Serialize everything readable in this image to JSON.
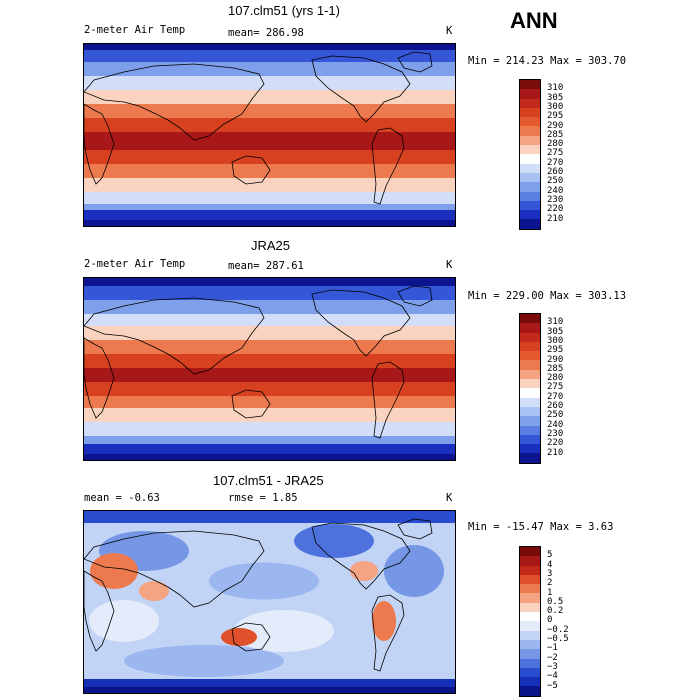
{
  "season": "ANN",
  "panels": [
    {
      "title": "107.clm51 (yrs 1-1)",
      "variable": "2-meter Air Temp",
      "mean": "mean= 286.98",
      "units": "K",
      "minmax": "Min = 214.23 Max = 303.70",
      "colorbar": {
        "labels": [
          "310",
          "305",
          "300",
          "295",
          "290",
          "285",
          "280",
          "275",
          "270",
          "260",
          "250",
          "240",
          "230",
          "220",
          "210"
        ],
        "colors": [
          "#7a0b0b",
          "#a81818",
          "#c42a1c",
          "#d8411f",
          "#e45a2e",
          "#ec7a4e",
          "#f4a383",
          "#f9d3bf",
          "#ffffff",
          "#d2def7",
          "#a7c1f2",
          "#7ea0ea",
          "#5a7fe2",
          "#3556d6",
          "#1a2fbe",
          "#0c1490"
        ]
      },
      "map": {
        "kind": "temperature",
        "bands": [
          0.0,
          0.24,
          0.33,
          0.42,
          0.51,
          0.66,
          0.8,
          0.88,
          1.0
        ]
      }
    },
    {
      "title": "JRA25",
      "variable": "2-meter Air Temp",
      "mean": "mean= 287.61",
      "units": "K",
      "minmax": "Min = 229.00 Max = 303.13",
      "colorbar": {
        "labels": [
          "310",
          "305",
          "300",
          "295",
          "290",
          "285",
          "280",
          "275",
          "270",
          "260",
          "250",
          "240",
          "230",
          "220",
          "210"
        ],
        "colors": [
          "#7a0b0b",
          "#a81818",
          "#c42a1c",
          "#d8411f",
          "#e45a2e",
          "#ec7a4e",
          "#f4a383",
          "#f9d3bf",
          "#ffffff",
          "#d2def7",
          "#a7c1f2",
          "#7ea0ea",
          "#5a7fe2",
          "#3556d6",
          "#1a2fbe",
          "#0c1490"
        ]
      },
      "map": {
        "kind": "temperature",
        "bands": [
          0.0,
          0.14,
          0.22,
          0.34,
          0.47,
          0.62,
          0.77,
          0.86,
          1.0
        ]
      }
    },
    {
      "title": "107.clm51 - JRA25",
      "variable": "",
      "mean": "mean =   -0.63",
      "rmse": "rmse =    1.85",
      "units": "K",
      "minmax": "Min = -15.47 Max =   3.63",
      "colorbar": {
        "labels": [
          "5",
          "4",
          "3",
          "2",
          "1",
          "0.5",
          "0.2",
          "0",
          "−0.2",
          "−0.5",
          "−1",
          "−2",
          "−3",
          "−4",
          "−5"
        ],
        "colors": [
          "#7a0b0b",
          "#a81818",
          "#c42a1c",
          "#e0502a",
          "#ec7a4e",
          "#f4a383",
          "#f9d3bf",
          "#ffffff",
          "#e4ecfb",
          "#c2d4f5",
          "#9cb6ef",
          "#7597e6",
          "#4d72dd",
          "#2a4ccf",
          "#1630b8",
          "#0a1488"
        ]
      },
      "map": {
        "kind": "difference"
      }
    }
  ]
}
